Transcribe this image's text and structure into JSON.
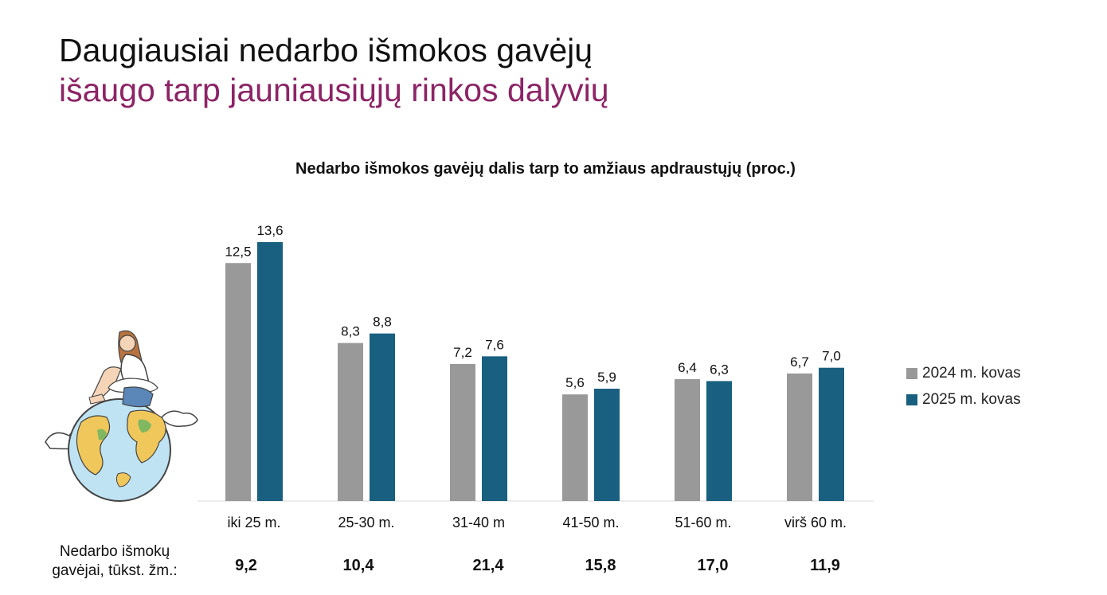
{
  "page": {
    "headline_line1": "Daugiausiai nedarbo išmokos gavėjų",
    "headline_line2": "išaugo tarp jauniausiųjų rinkos dalyvių",
    "accent_color": "#8c2466"
  },
  "chart_data": {
    "type": "bar",
    "title": "Nedarbo išmokos gavėjų dalis tarp to amžiaus apdraustųjų (proc.)",
    "categories": [
      "iki 25 m.",
      "25-30 m.",
      "31-40 m",
      "41-50 m.",
      "51-60 m.",
      "virš 60 m."
    ],
    "series": [
      {
        "name": "2024 m. kovas",
        "color": "#999999",
        "values": [
          12.5,
          8.3,
          7.2,
          5.6,
          6.4,
          6.7
        ],
        "labels": [
          "12,5",
          "8,3",
          "7,2",
          "5,6",
          "6,4",
          "6,7"
        ]
      },
      {
        "name": "2025 m. kovas",
        "color": "#185f80",
        "values": [
          13.6,
          8.8,
          7.6,
          5.9,
          6.3,
          7.0
        ],
        "labels": [
          "13,6",
          "8,8",
          "7,6",
          "5,9",
          "6,3",
          "7,0"
        ]
      }
    ],
    "ylim": [
      0,
      14
    ],
    "legend_position": "right",
    "grid": false
  },
  "recipients": {
    "label_line1": "Nedarbo išmokų",
    "label_line2": "gavėjai, tūkst. žm.:",
    "values": [
      "9,2",
      "10,4",
      "21,4",
      "15,8",
      "17,0",
      "11,9"
    ]
  },
  "illustration": {
    "icon": "woman-sitting-on-globe-icon"
  }
}
